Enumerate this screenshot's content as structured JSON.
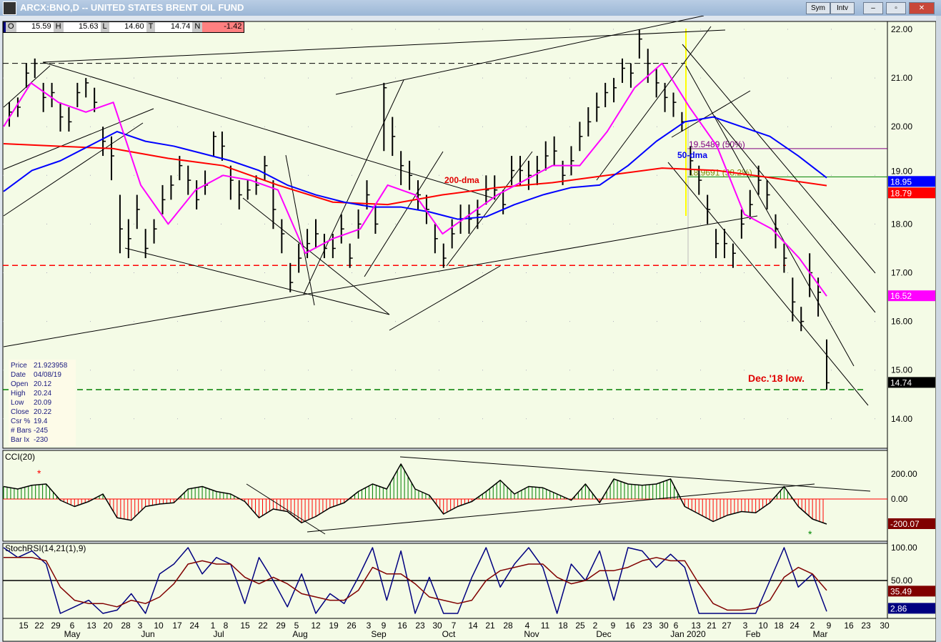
{
  "window": {
    "title": "ARCX:BNO,D -- UNITED STATES BRENT OIL FUND",
    "sym_label": "Sym",
    "intv_label": "Intv"
  },
  "ohlc_bar": {
    "o_label": "O",
    "o": "15.59",
    "h_label": "H",
    "h": "15.63",
    "l_label": "L",
    "l": "14.60",
    "t_label": "T",
    "t": "14.74",
    "n_label": "N",
    "n": "-1.42"
  },
  "info_box": [
    [
      "Price",
      "21.923958"
    ],
    [
      "Date",
      "04/08/19"
    ],
    [
      "Open",
      "20.12"
    ],
    [
      "High",
      "20.24"
    ],
    [
      "Low",
      "20.09"
    ],
    [
      "Close",
      "20.22"
    ],
    [
      "Csr %",
      "19.4"
    ],
    [
      "# Bars",
      "-245"
    ],
    [
      "Bar Ix",
      "-230"
    ]
  ],
  "colors": {
    "background": "#f4fbe6",
    "bars": "#000000",
    "ma_fast": "#ff00ff",
    "ma50": "#0000ff",
    "ma200": "#ff0000",
    "cci_pos": "#008000",
    "cci_neg": "#ff0000",
    "stoch_fast": "#000080",
    "stoch_slow": "#800000"
  },
  "chart_data": [
    {
      "type": "ohlc",
      "title": "",
      "ylim": [
        13.4,
        22.3
      ],
      "yticks": [
        "22.00",
        "21.00",
        "20.00",
        "19.00",
        "18.00",
        "17.00",
        "16.00",
        "15.00",
        "14.00"
      ],
      "last_labels": {
        "ma50": "18.95",
        "ma200": "18.79",
        "ma_fast": "16.52",
        "price": "14.74"
      },
      "bars": [
        [
          20.5,
          20.0,
          20.3
        ],
        [
          20.6,
          20.2,
          20.4
        ],
        [
          21.3,
          20.8,
          21.1
        ],
        [
          21.4,
          21.0,
          21.3
        ],
        [
          20.9,
          20.3,
          20.6
        ],
        [
          20.9,
          20.4,
          20.7
        ],
        [
          20.5,
          19.9,
          20.2
        ],
        [
          20.4,
          19.9,
          20.1
        ],
        [
          20.9,
          20.4,
          20.7
        ],
        [
          21.0,
          20.6,
          20.9
        ],
        [
          20.8,
          20.3,
          20.5
        ],
        [
          20.0,
          19.4,
          19.7
        ],
        [
          19.8,
          18.9,
          19.4
        ],
        [
          18.6,
          17.4,
          17.9
        ],
        [
          18.1,
          17.3,
          17.7
        ],
        [
          18.6,
          17.9,
          18.3
        ],
        [
          17.9,
          17.3,
          17.5
        ],
        [
          18.1,
          17.6,
          17.9
        ],
        [
          18.8,
          18.2,
          18.5
        ],
        [
          19.0,
          18.5,
          18.8
        ],
        [
          19.4,
          18.9,
          19.2
        ],
        [
          19.2,
          18.6,
          18.9
        ],
        [
          18.9,
          18.3,
          18.5
        ],
        [
          19.1,
          18.6,
          18.8
        ],
        [
          19.9,
          19.4,
          19.8
        ],
        [
          19.9,
          19.3,
          19.6
        ],
        [
          19.2,
          18.5,
          18.9
        ],
        [
          18.9,
          18.3,
          18.6
        ],
        [
          18.9,
          18.5,
          18.7
        ],
        [
          19.0,
          18.6,
          18.8
        ],
        [
          19.4,
          18.9,
          19.2
        ],
        [
          18.9,
          17.9,
          18.3
        ],
        [
          18.1,
          17.4,
          17.8
        ],
        [
          17.2,
          16.6,
          16.8
        ],
        [
          17.6,
          17.0,
          17.3
        ],
        [
          17.9,
          17.3,
          17.6
        ],
        [
          18.1,
          17.5,
          17.8
        ],
        [
          17.8,
          17.3,
          17.5
        ],
        [
          17.8,
          17.3,
          17.5
        ],
        [
          18.2,
          17.6,
          17.9
        ],
        [
          17.6,
          17.1,
          17.3
        ],
        [
          18.3,
          17.7,
          18.0
        ],
        [
          18.9,
          18.3,
          18.6
        ],
        [
          18.4,
          17.8,
          18.0
        ],
        [
          20.9,
          19.5,
          20.8
        ],
        [
          20.2,
          19.4,
          19.8
        ],
        [
          19.5,
          18.8,
          19.2
        ],
        [
          19.3,
          18.7,
          19.0
        ],
        [
          18.9,
          18.3,
          18.6
        ],
        [
          18.6,
          18.0,
          18.3
        ],
        [
          18.0,
          17.4,
          17.7
        ],
        [
          17.6,
          17.1,
          17.3
        ],
        [
          18.1,
          17.5,
          17.8
        ],
        [
          18.4,
          17.8,
          18.1
        ],
        [
          18.4,
          17.8,
          18.1
        ],
        [
          18.5,
          17.9,
          18.2
        ],
        [
          19.0,
          18.4,
          18.7
        ],
        [
          19.0,
          18.5,
          18.7
        ],
        [
          18.7,
          18.2,
          18.4
        ],
        [
          19.4,
          18.8,
          19.1
        ],
        [
          19.4,
          18.8,
          19.1
        ],
        [
          19.3,
          18.7,
          19.0
        ],
        [
          19.4,
          18.8,
          19.1
        ],
        [
          19.7,
          19.1,
          19.4
        ],
        [
          19.8,
          19.2,
          19.5
        ],
        [
          19.3,
          18.8,
          19.0
        ],
        [
          19.6,
          19.0,
          19.3
        ],
        [
          20.1,
          19.5,
          19.8
        ],
        [
          20.4,
          19.8,
          20.1
        ],
        [
          20.7,
          20.1,
          20.4
        ],
        [
          20.9,
          20.4,
          20.7
        ],
        [
          21.0,
          20.5,
          20.8
        ],
        [
          21.4,
          20.9,
          21.2
        ],
        [
          21.3,
          20.8,
          21.1
        ],
        [
          22.0,
          21.4,
          21.8
        ],
        [
          21.6,
          20.9,
          21.3
        ],
        [
          21.2,
          20.6,
          20.9
        ],
        [
          20.9,
          20.3,
          20.6
        ],
        [
          20.7,
          20.2,
          20.5
        ],
        [
          20.3,
          19.9,
          20.1
        ],
        [
          19.6,
          19.0,
          19.3
        ],
        [
          19.2,
          18.6,
          18.9
        ],
        [
          18.6,
          18.0,
          18.3
        ],
        [
          17.9,
          17.3,
          17.6
        ],
        [
          17.9,
          17.3,
          17.6
        ],
        [
          17.6,
          17.1,
          17.4
        ],
        [
          18.3,
          17.7,
          18.0
        ],
        [
          18.7,
          18.1,
          18.4
        ],
        [
          19.2,
          18.6,
          18.9
        ],
        [
          18.9,
          18.3,
          18.6
        ],
        [
          18.2,
          17.5,
          17.9
        ],
        [
          17.6,
          17.0,
          17.3
        ],
        [
          16.9,
          16.0,
          16.4
        ],
        [
          16.3,
          15.8,
          16.0
        ],
        [
          17.4,
          16.5,
          17.0
        ],
        [
          16.9,
          16.1,
          16.6
        ],
        [
          15.63,
          14.6,
          14.74
        ]
      ],
      "ma_fast": [
        20.0,
        20.9,
        20.5,
        20.3,
        20.5,
        18.8,
        18.0,
        18.7,
        19.0,
        18.9,
        18.7,
        17.4,
        17.7,
        17.9,
        18.8,
        18.6,
        17.8,
        18.2,
        18.6,
        18.9,
        19.2,
        19.2,
        19.9,
        20.8,
        21.3,
        20.4,
        19.6,
        18.2,
        17.9,
        17.3,
        16.52
      ],
      "ma50": [
        18.67,
        19.1,
        19.3,
        19.6,
        19.9,
        19.7,
        19.6,
        19.45,
        19.3,
        19.1,
        18.8,
        18.6,
        18.45,
        18.35,
        18.35,
        18.25,
        18.1,
        18.15,
        18.4,
        18.6,
        18.75,
        18.8,
        19.2,
        19.7,
        20.1,
        20.2,
        20.0,
        19.8,
        19.4,
        18.95
      ],
      "ma200": [
        19.65,
        19.6,
        19.55,
        19.35,
        19.2,
        18.8,
        18.45,
        18.4,
        18.6,
        18.75,
        18.85,
        19.0,
        19.15,
        19.1,
        18.95,
        18.79
      ],
      "levels": [
        {
          "value": 17.15,
          "color": "#ff0000"
        },
        {
          "value": 14.6,
          "color": "#008000"
        },
        {
          "value": 21.3,
          "color": "#000000"
        }
      ],
      "fib": [
        {
          "value": 19.5489,
          "label": "19.5489 (50%)",
          "color": "#800080"
        },
        {
          "value": 18.9691,
          "label": "18.9691 (38.2%)",
          "color": "#008000"
        }
      ],
      "annotations": {
        "dma200": "200-dma",
        "dma50": "50-dma",
        "dec_low": "Dec.'18 low."
      }
    },
    {
      "type": "bar",
      "title": "CCI(20)",
      "yticks": [
        "200.00",
        "0.00"
      ],
      "last_label": "-200.07",
      "values": [
        100,
        80,
        110,
        120,
        -10,
        -60,
        -20,
        40,
        -150,
        -170,
        -60,
        -40,
        -30,
        80,
        100,
        60,
        40,
        -20,
        -150,
        -80,
        -100,
        -190,
        -140,
        -70,
        -30,
        60,
        120,
        80,
        280,
        80,
        30,
        -120,
        -60,
        -20,
        60,
        150,
        40,
        100,
        90,
        40,
        -10,
        120,
        -30,
        160,
        120,
        110,
        120,
        160,
        -60,
        -120,
        -180,
        -130,
        -100,
        -110,
        -30,
        100,
        -60,
        -160,
        -200
      ]
    },
    {
      "type": "line",
      "title": "StochRSI(14,21(1),9)",
      "yticks": [
        "100.00",
        "50.00"
      ],
      "last_labels": {
        "slow": "35.49",
        "fast": "2.86"
      },
      "fast": [
        100,
        85,
        95,
        75,
        0,
        10,
        20,
        0,
        5,
        30,
        0,
        60,
        75,
        100,
        60,
        85,
        75,
        15,
        85,
        50,
        10,
        60,
        0,
        30,
        15,
        55,
        100,
        20,
        95,
        0,
        55,
        0,
        0,
        55,
        100,
        40,
        75,
        100,
        70,
        0,
        75,
        50,
        95,
        20,
        100,
        95,
        70,
        90,
        70,
        0,
        0,
        0,
        0,
        0,
        50,
        100,
        40,
        60,
        3
      ],
      "slow": [
        85,
        85,
        85,
        80,
        40,
        20,
        15,
        15,
        10,
        20,
        15,
        25,
        45,
        75,
        80,
        75,
        75,
        55,
        45,
        55,
        45,
        30,
        25,
        20,
        20,
        35,
        70,
        60,
        60,
        45,
        25,
        20,
        15,
        20,
        50,
        65,
        70,
        75,
        75,
        55,
        45,
        50,
        65,
        65,
        70,
        80,
        85,
        80,
        80,
        45,
        15,
        5,
        5,
        8,
        20,
        55,
        70,
        60,
        35
      ]
    },
    {
      "type": "axis",
      "xticks": [
        "15",
        "22",
        "29",
        "6",
        "13",
        "20",
        "28",
        "3",
        "10",
        "17",
        "24",
        "1",
        "8",
        "15",
        "22",
        "29",
        "5",
        "12",
        "19",
        "26",
        "3",
        "9",
        "16",
        "23",
        "30",
        "7",
        "14",
        "21",
        "28",
        "4",
        "11",
        "18",
        "25",
        "2",
        "9",
        "16",
        "23",
        "30",
        "6",
        "13",
        "21",
        "27",
        "3",
        "10",
        "18",
        "24",
        "2",
        "9",
        "16",
        "23",
        "30"
      ],
      "months": [
        "May",
        "Jun",
        "Jul",
        "Aug",
        "Sep",
        "Oct",
        "Nov",
        "Dec",
        "Jan 2020",
        "Feb",
        "Mar"
      ]
    }
  ]
}
